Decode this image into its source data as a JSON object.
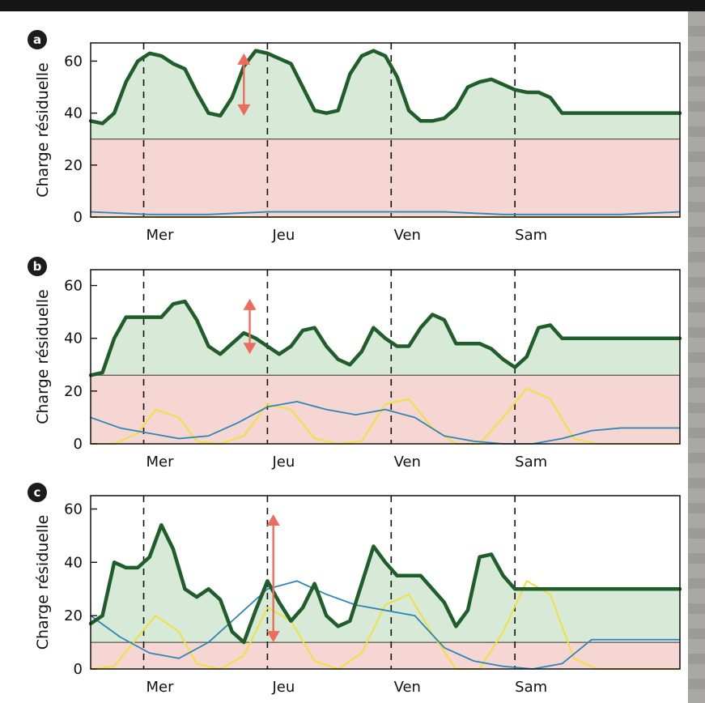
{
  "chart_data": [
    {
      "panel_label": "a",
      "type": "line",
      "ylabel": "Charge résiduelle",
      "ylim": [
        0,
        67
      ],
      "yticks": [
        "0",
        "20",
        "40",
        "60"
      ],
      "xlim": [
        0,
        100
      ],
      "day_labels": [
        "Mer",
        "Jeu",
        "Ven",
        "Sam"
      ],
      "day_positions": [
        9,
        30,
        51,
        72
      ],
      "threshold": 30,
      "series": [
        {
          "color": "#1f5e2a",
          "x": [
            0,
            2,
            4,
            6,
            8,
            10,
            12,
            14,
            16,
            18,
            20,
            22,
            24,
            26,
            28,
            30,
            32,
            34,
            36,
            38,
            40,
            42,
            44,
            46,
            48,
            50,
            52,
            54,
            56,
            58,
            60,
            62,
            64,
            66,
            68,
            70,
            72,
            74,
            76,
            78,
            80,
            82,
            84,
            86,
            88,
            90,
            92,
            94,
            96,
            98,
            100
          ],
          "values": [
            37,
            36,
            40,
            52,
            60,
            63,
            62,
            59,
            57,
            48,
            40,
            39,
            46,
            58,
            64,
            63,
            61,
            59,
            50,
            41,
            40,
            41,
            55,
            62,
            64,
            62,
            54,
            41,
            37,
            37,
            38,
            42,
            50,
            52,
            53,
            51,
            49,
            48,
            48,
            46,
            40,
            40,
            40,
            40,
            40,
            40,
            40,
            40,
            40,
            40,
            40
          ]
        },
        {
          "color": "#2e86b8",
          "x": [
            0,
            10,
            20,
            30,
            40,
            50,
            60,
            70,
            80,
            90,
            100
          ],
          "values": [
            2,
            1,
            1,
            2,
            2,
            2,
            2,
            1,
            1,
            1,
            2
          ]
        },
        {
          "color": "#f0e040",
          "x": [
            0,
            100
          ],
          "values": [
            0,
            0
          ]
        }
      ],
      "arrow": {
        "x": 26,
        "from": 39,
        "to": 63
      }
    },
    {
      "panel_label": "b",
      "type": "line",
      "ylabel": "Charge résiduelle",
      "ylim": [
        0,
        66
      ],
      "yticks": [
        "0",
        "20",
        "40",
        "60"
      ],
      "xlim": [
        0,
        100
      ],
      "day_labels": [
        "Mer",
        "Jeu",
        "Ven",
        "Sam"
      ],
      "day_positions": [
        9,
        30,
        51,
        72
      ],
      "threshold": 26,
      "series": [
        {
          "color": "#1f5e2a",
          "x": [
            0,
            2,
            4,
            6,
            8,
            10,
            12,
            14,
            16,
            18,
            20,
            22,
            24,
            26,
            28,
            30,
            32,
            34,
            36,
            38,
            40,
            42,
            44,
            46,
            48,
            50,
            52,
            54,
            56,
            58,
            60,
            62,
            64,
            66,
            68,
            70,
            72,
            74,
            76,
            78,
            80,
            82,
            84,
            86,
            88,
            90,
            92,
            94,
            96,
            98,
            100
          ],
          "values": [
            26,
            27,
            40,
            48,
            48,
            48,
            48,
            53,
            54,
            47,
            37,
            34,
            38,
            42,
            40,
            37,
            34,
            37,
            43,
            44,
            37,
            32,
            30,
            35,
            44,
            40,
            37,
            37,
            44,
            49,
            47,
            38,
            38,
            38,
            36,
            32,
            29,
            33,
            44,
            45,
            40,
            40,
            40,
            40,
            40,
            40,
            40,
            40,
            40,
            40,
            40
          ]
        },
        {
          "color": "#2e86b8",
          "x": [
            0,
            5,
            10,
            15,
            20,
            25,
            30,
            35,
            40,
            45,
            50,
            55,
            60,
            65,
            70,
            75,
            80,
            85,
            90,
            95,
            100
          ],
          "values": [
            10,
            6,
            4,
            2,
            3,
            8,
            14,
            16,
            13,
            11,
            13,
            10,
            3,
            1,
            0,
            0,
            2,
            5,
            6,
            6,
            6
          ]
        },
        {
          "color": "#f0e040",
          "x": [
            0,
            4,
            8,
            11,
            15,
            18,
            22,
            26,
            30,
            34,
            38,
            42,
            46,
            50,
            54,
            58,
            62,
            66,
            70,
            74,
            78,
            82,
            86,
            90,
            94,
            100
          ],
          "values": [
            0,
            0,
            4,
            13,
            10,
            1,
            0,
            3,
            15,
            13,
            2,
            0,
            1,
            15,
            17,
            6,
            0,
            0,
            10,
            21,
            17,
            2,
            0,
            0,
            0,
            0
          ]
        }
      ],
      "arrow": {
        "x": 27,
        "from": 34,
        "to": 55
      }
    },
    {
      "panel_label": "c",
      "type": "line",
      "ylabel": "Charge résiduelle",
      "ylim": [
        0,
        65
      ],
      "yticks": [
        "0",
        "20",
        "40",
        "60"
      ],
      "xlim": [
        0,
        100
      ],
      "day_labels": [
        "Mer",
        "Jeu",
        "Ven",
        "Sam"
      ],
      "day_positions": [
        9,
        30,
        51,
        72
      ],
      "threshold": 10,
      "series": [
        {
          "color": "#1f5e2a",
          "x": [
            0,
            2,
            4,
            6,
            8,
            10,
            12,
            14,
            16,
            18,
            20,
            22,
            24,
            26,
            28,
            30,
            32,
            34,
            36,
            38,
            40,
            42,
            44,
            46,
            48,
            50,
            52,
            54,
            56,
            58,
            60,
            62,
            64,
            66,
            68,
            70,
            72,
            74,
            76,
            78,
            80,
            82,
            84,
            86,
            88,
            90,
            92,
            94,
            96,
            98,
            100
          ],
          "values": [
            17,
            20,
            40,
            38,
            38,
            42,
            54,
            45,
            30,
            27,
            30,
            26,
            14,
            10,
            22,
            33,
            25,
            18,
            23,
            32,
            20,
            16,
            18,
            32,
            46,
            40,
            35,
            35,
            35,
            30,
            25,
            16,
            22,
            42,
            43,
            35,
            30,
            30,
            30,
            30,
            30,
            30,
            30,
            30,
            30,
            30,
            30,
            30,
            30,
            30,
            30
          ]
        },
        {
          "color": "#2e86b8",
          "x": [
            0,
            5,
            10,
            15,
            20,
            25,
            30,
            35,
            40,
            45,
            50,
            55,
            60,
            65,
            70,
            75,
            80,
            85,
            90,
            95,
            100
          ],
          "values": [
            20,
            12,
            6,
            4,
            10,
            20,
            30,
            33,
            28,
            24,
            22,
            20,
            8,
            3,
            1,
            0,
            2,
            11,
            11,
            11,
            11
          ]
        },
        {
          "color": "#f0e040",
          "x": [
            0,
            4,
            8,
            11,
            15,
            18,
            22,
            26,
            30,
            34,
            38,
            42,
            46,
            50,
            54,
            58,
            62,
            66,
            70,
            74,
            78,
            82,
            86,
            90,
            94,
            100
          ],
          "values": [
            0,
            1,
            12,
            20,
            14,
            2,
            0,
            5,
            23,
            18,
            3,
            0,
            6,
            24,
            28,
            13,
            0,
            0,
            14,
            33,
            28,
            4,
            0,
            0,
            0,
            0
          ]
        }
      ],
      "arrow": {
        "x": 31,
        "from": 10,
        "to": 58
      }
    }
  ],
  "colors": {
    "green_line": "#1f5e2a",
    "green_fill": "#d7e9d7",
    "red_fill": "#f6d6d2",
    "blue_line": "#2e86b8",
    "yellow_line": "#f0e040",
    "arrow": "#ef6b5b",
    "badge": "#1c1c1c"
  }
}
